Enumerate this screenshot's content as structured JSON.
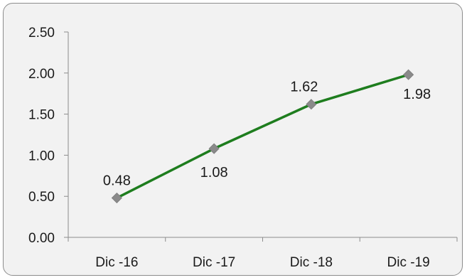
{
  "chart_data": {
    "type": "line",
    "title": "",
    "xlabel": "",
    "ylabel": "",
    "categories": [
      "Dic -16",
      "Dic -17",
      "Dic -18",
      "Dic -19"
    ],
    "series": [
      {
        "values": [
          0.48,
          1.08,
          1.62,
          1.98
        ],
        "data_labels": [
          "0.48",
          "1.08",
          "1.62",
          "1.98"
        ],
        "color": "#1e7d1e",
        "marker": "diamond",
        "marker_color": "#8a8a8a"
      }
    ],
    "ylim": [
      0,
      2.5
    ],
    "yticks": [
      0,
      0.5,
      1,
      1.5,
      2,
      2.5
    ],
    "ytick_labels": [
      "0.00",
      "0.50",
      "1.00",
      "1.50",
      "2.00",
      "2.50"
    ],
    "grid": false,
    "legend": "none",
    "background_color": "#f2f2f2",
    "border_color": "#8c8c8c",
    "axis_color": "#8c8c8c"
  }
}
